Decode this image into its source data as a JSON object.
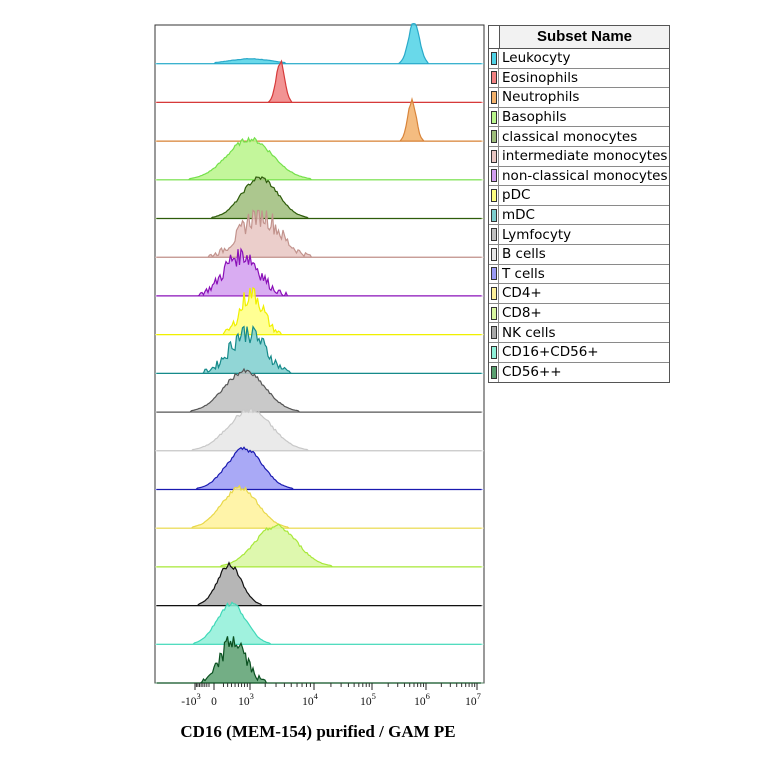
{
  "chart_data": {
    "type": "area",
    "subtype": "stacked histogram overlay",
    "xlabel": "CD16 (MEM-154) purified / GAM PE",
    "x_scale": "biexponential",
    "x_ticks": [
      {
        "base": "-10",
        "exp": "3"
      },
      {
        "base": "0",
        "exp": ""
      },
      {
        "base": "10",
        "exp": "3"
      },
      {
        "base": "10",
        "exp": "4"
      },
      {
        "base": "10",
        "exp": "5"
      },
      {
        "base": "10",
        "exp": "6"
      },
      {
        "base": "10",
        "exp": "7"
      }
    ],
    "legend_title": "Subset Name",
    "legend_placement": "right",
    "series": [
      {
        "name": "Leukocyty",
        "color": "#4fd2e6",
        "stroke": "#29a9c9",
        "peaks": [
          {
            "center": 1000,
            "width": 0.35,
            "height": 0.12
          },
          {
            "center": 600000,
            "width": 0.09,
            "height": 1.0
          }
        ]
      },
      {
        "name": "Eosinophils",
        "color": "#f08080",
        "stroke": "#d63a3a",
        "peaks": [
          {
            "center": 3500,
            "width": 0.07,
            "height": 1.0
          }
        ]
      },
      {
        "name": "Neutrophils",
        "color": "#f2b06a",
        "stroke": "#d8843a",
        "peaks": [
          {
            "center": 550000,
            "width": 0.07,
            "height": 1.0
          }
        ]
      },
      {
        "name": "Basophils",
        "color": "#b8f58a",
        "stroke": "#74e04a",
        "peaks": [
          {
            "center": 1000,
            "width": 0.38,
            "height": 1.0
          }
        ]
      },
      {
        "name": "classical monocytes",
        "color": "#9ebd7a",
        "stroke": "#2e5c0a",
        "peaks": [
          {
            "center": 1600,
            "width": 0.3,
            "height": 1.0
          }
        ]
      },
      {
        "name": "intermediate monocytes",
        "color": "#e8c6c2",
        "stroke": "#c2938d",
        "peaks": [
          {
            "center": 1600,
            "width": 0.32,
            "height": 1.0
          }
        ]
      },
      {
        "name": "non-classical monocytes",
        "color": "#d29ef0",
        "stroke": "#8a10b8",
        "peaks": [
          {
            "center": 700,
            "width": 0.28,
            "height": 1.0
          }
        ]
      },
      {
        "name": "pDC",
        "color": "#ffff80",
        "stroke": "#f0f000",
        "peaks": [
          {
            "center": 1100,
            "width": 0.18,
            "height": 1.0
          }
        ]
      },
      {
        "name": "mDC",
        "color": "#7ecfcf",
        "stroke": "#168a8a",
        "peaks": [
          {
            "center": 900,
            "width": 0.28,
            "height": 1.0
          }
        ]
      },
      {
        "name": "Lymfocyty",
        "color": "#c0c0c0",
        "stroke": "#555555",
        "peaks": [
          {
            "center": 800,
            "width": 0.34,
            "height": 1.0
          }
        ]
      },
      {
        "name": "B cells",
        "color": "#e6e6e6",
        "stroke": "#c8c8c8",
        "peaks": [
          {
            "center": 1000,
            "width": 0.36,
            "height": 1.0
          }
        ]
      },
      {
        "name": "T cells",
        "color": "#9a9af5",
        "stroke": "#1a1ab0",
        "peaks": [
          {
            "center": 800,
            "width": 0.3,
            "height": 1.0
          }
        ]
      },
      {
        "name": "CD4+",
        "color": "#fff29a",
        "stroke": "#e8d84a",
        "peaks": [
          {
            "center": 650,
            "width": 0.3,
            "height": 1.0
          }
        ]
      },
      {
        "name": "CD8+",
        "color": "#d8f7a0",
        "stroke": "#a8e83a",
        "peaks": [
          {
            "center": 3000,
            "width": 0.35,
            "height": 1.0
          }
        ]
      },
      {
        "name": "NK cells",
        "color": "#a9a9a9",
        "stroke": "#111111",
        "peaks": [
          {
            "center": 350,
            "width": 0.2,
            "height": 1.0
          }
        ]
      },
      {
        "name": "CD16+CD56+",
        "color": "#8ff0d8",
        "stroke": "#40d8b8",
        "peaks": [
          {
            "center": 400,
            "width": 0.24,
            "height": 1.0
          }
        ]
      },
      {
        "name": "CD56++",
        "color": "#5aa070",
        "stroke": "#0a5020",
        "peaks": [
          {
            "center": 450,
            "width": 0.2,
            "height": 1.0
          }
        ]
      }
    ]
  }
}
